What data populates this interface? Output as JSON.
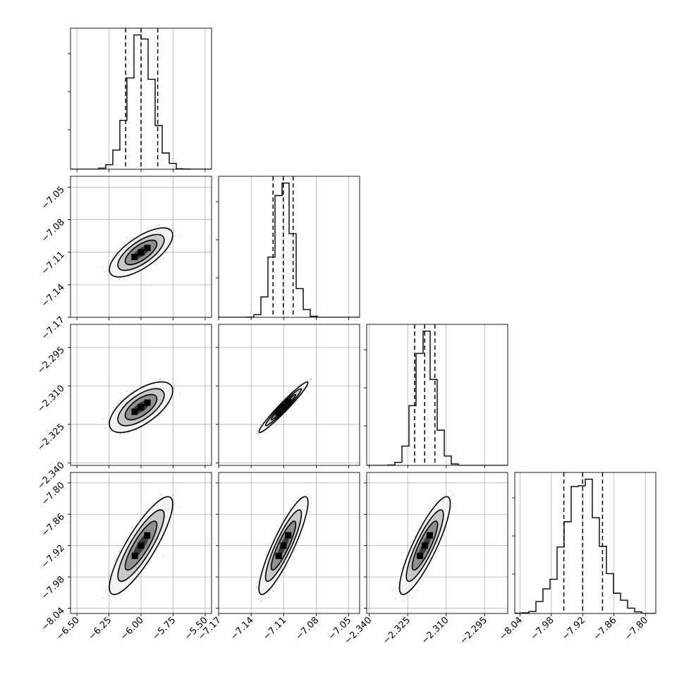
{
  "chart_data": {
    "type": "corner",
    "parameters": [
      {
        "range": [
          -6.55,
          -5.45
        ],
        "ticks": [
          -6.5,
          -6.25,
          -6.0,
          -5.75,
          -5.5
        ],
        "tick_labels": [
          "−6.50",
          "−6.25",
          "−6.00",
          "−5.75",
          "−5.50"
        ],
        "quantiles": [
          -6.12,
          -6.0,
          -5.87
        ],
        "mean": -6.0,
        "sd": 0.095
      },
      {
        "range": [
          -7.17,
          -7.04
        ],
        "ticks": [
          -7.17,
          -7.14,
          -7.11,
          -7.08,
          -7.05
        ],
        "tick_labels": [
          "−7.17",
          "−7.14",
          "−7.11",
          "−7.08",
          "−7.05"
        ],
        "quantiles": [
          -7.1198,
          -7.1104,
          -7.1013
        ],
        "mean": -7.1102,
        "sd": 0.0087
      },
      {
        "range": [
          -2.341,
          -2.286
        ],
        "ticks": [
          -2.34,
          -2.325,
          -2.31,
          -2.295
        ],
        "tick_labels": [
          "−2.340",
          "−2.325",
          "−2.310",
          "−2.295"
        ],
        "quantiles": [
          -2.3223,
          -2.3184,
          -2.3144
        ],
        "mean": -2.3183,
        "sd": 0.0038
      },
      {
        "range": [
          -8.05,
          -7.78
        ],
        "ticks": [
          -8.04,
          -7.98,
          -7.92,
          -7.86,
          -7.8
        ],
        "tick_labels": [
          "−8.04",
          "−7.98",
          "−7.92",
          "−7.86",
          "−7.80"
        ],
        "quantiles": [
          -7.956,
          -7.92,
          -7.882
        ],
        "mean": -7.92,
        "sd": 0.036
      }
    ],
    "correlations": [
      [
        1,
        0.7,
        0.65,
        0.85
      ],
      [
        0.7,
        1,
        0.97,
        0.88
      ],
      [
        0.65,
        0.97,
        1,
        0.86
      ],
      [
        0.85,
        0.88,
        0.86,
        1
      ]
    ],
    "grid": true,
    "contour_levels": 4,
    "colors": {
      "line": "#000000",
      "scatter": "#9a9a9a",
      "grid": "#b0b0b0"
    }
  }
}
